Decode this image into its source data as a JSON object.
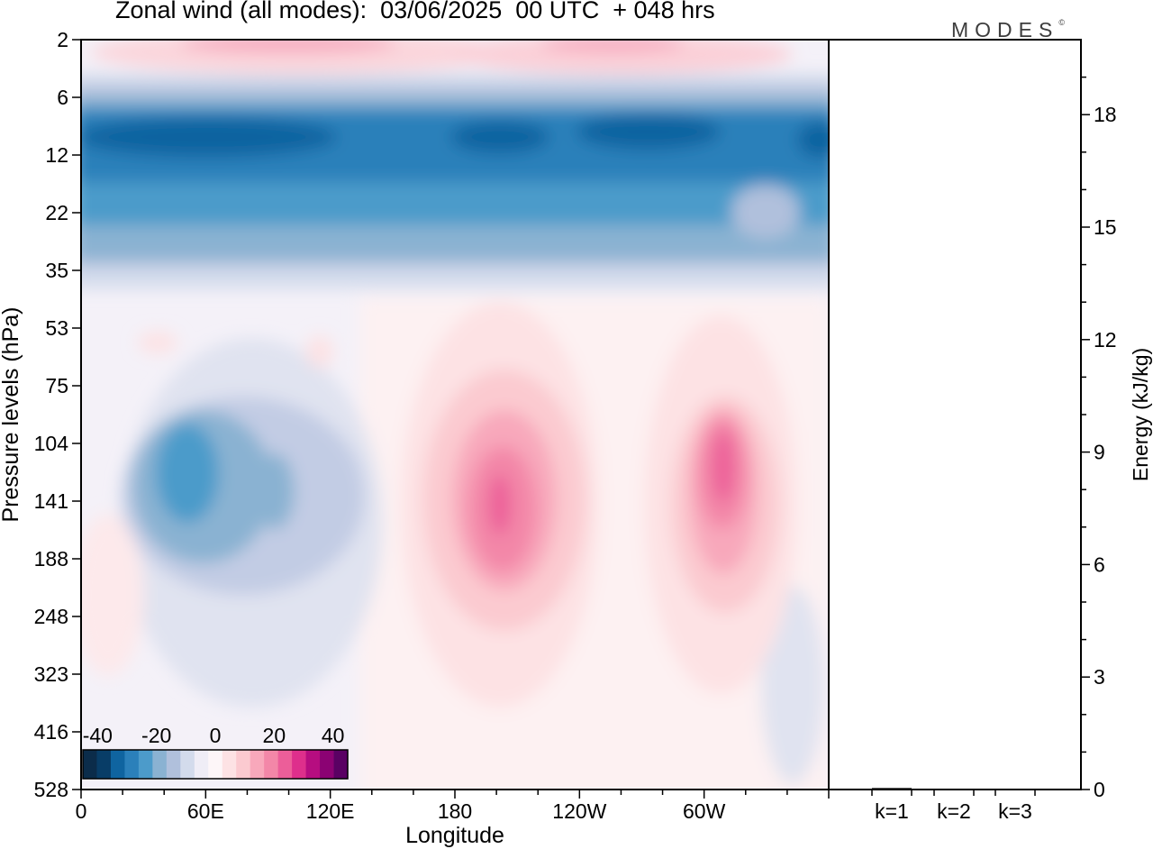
{
  "title": "Zonal wind (all modes):  03/06/2025  00 UTC  + 048 hrs",
  "brand": {
    "name": "MODES",
    "mark": "©"
  },
  "chart_data": [
    {
      "type": "heatmap",
      "title": "Zonal wind (all modes):  03/06/2025  00 UTC  + 048 hrs",
      "xlabel": "Longitude",
      "ylabel": "Pressure levels (hPa)",
      "x_ticks": [
        "0",
        "60E",
        "120E",
        "180",
        "120W",
        "60W"
      ],
      "x_range_deg_east": [
        0,
        360
      ],
      "y_ticks": [
        2,
        6,
        12,
        22,
        35,
        53,
        75,
        104,
        141,
        188,
        248,
        323,
        416,
        528
      ],
      "y_range_hPa": [
        2,
        528
      ],
      "colorbar": {
        "ticks": [
          "-40",
          "-20",
          "0",
          "20",
          "40"
        ],
        "range": [
          -45,
          45
        ],
        "colors": [
          "#0b2c4a",
          "#083d67",
          "#0f64a0",
          "#2b80ba",
          "#4c9bca",
          "#8ab2d2",
          "#b0c0dc",
          "#d3dbec",
          "#efedf6",
          "#fdf6f8",
          "#fde2e4",
          "#fbcad0",
          "#f8a8bb",
          "#f387a8",
          "#ec5e99",
          "#de2f8c",
          "#b60d80",
          "#8b0273",
          "#5a0163"
        ]
      },
      "features": [
        {
          "type": "easterly-band",
          "pressure_hPa": [
            6,
            22
          ],
          "lon_deg_east": [
            0,
            360
          ],
          "min_value": -35
        },
        {
          "type": "westerly-band",
          "pressure_hPa": [
            2,
            5
          ],
          "lon_deg_east": [
            20,
            340
          ],
          "max_value": 15
        },
        {
          "type": "easterly-core",
          "pressure_hPa": [
            90,
            230
          ],
          "lon_deg_east": [
            20,
            140
          ],
          "min_value": -22
        },
        {
          "type": "westerly-jet",
          "pressure_hPa": [
            75,
            400
          ],
          "lon_deg_east": [
            160,
            250
          ],
          "max_value": 28
        },
        {
          "type": "westerly-jet",
          "pressure_hPa": [
            75,
            360
          ],
          "lon_deg_east": [
            270,
            345
          ],
          "max_value": 27
        }
      ]
    },
    {
      "type": "bar",
      "ylabel": "Energy (kJ/kg)",
      "categories": [
        "k=1",
        "k=2",
        "k=3"
      ],
      "values": [
        0.04,
        0.02,
        0.01
      ],
      "y_ticks": [
        "0",
        "3",
        "6",
        "9",
        "12",
        "15",
        "18"
      ],
      "ylim": [
        0,
        20
      ]
    }
  ]
}
